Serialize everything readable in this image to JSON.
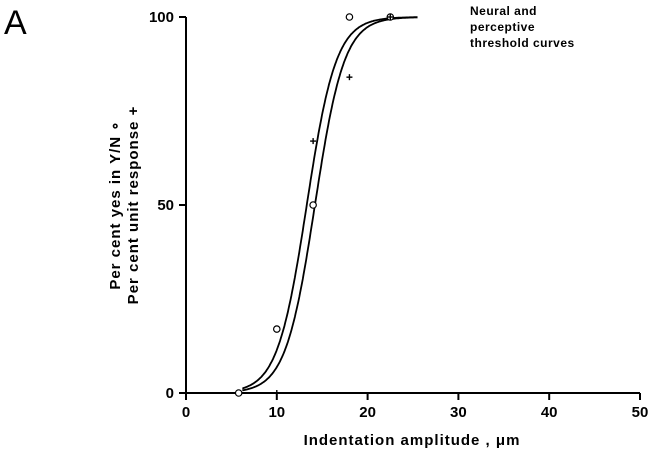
{
  "chart_data": {
    "type": "scatter",
    "panel_label": "A",
    "annotation_lines": [
      "Neural and",
      "perceptive",
      "threshold curves"
    ],
    "xlabel": "Indentation  amplitude , μm",
    "ylabel_lines": [
      "Per cent yes in Y/N ∘",
      "Per cent unit response +"
    ],
    "xlim": [
      0,
      50
    ],
    "ylim": [
      0,
      100
    ],
    "x_ticks": [
      0,
      10,
      20,
      30,
      40,
      50
    ],
    "y_ticks": [
      0,
      50,
      100
    ],
    "series": [
      {
        "marker": "open-circle",
        "points": [
          [
            5.8,
            0
          ],
          [
            10,
            17
          ],
          [
            14,
            50
          ],
          [
            18,
            100
          ],
          [
            22.5,
            100
          ]
        ],
        "curve_midpoint": 14.2,
        "curve_slope": 0.62
      },
      {
        "marker": "plus",
        "points": [
          [
            10,
            0
          ],
          [
            14,
            67
          ],
          [
            18,
            84
          ],
          [
            22.5,
            100
          ]
        ],
        "curve_midpoint": 13.3,
        "curve_slope": 0.62
      }
    ],
    "curve_x_range": [
      6.2,
      25.5
    ]
  }
}
